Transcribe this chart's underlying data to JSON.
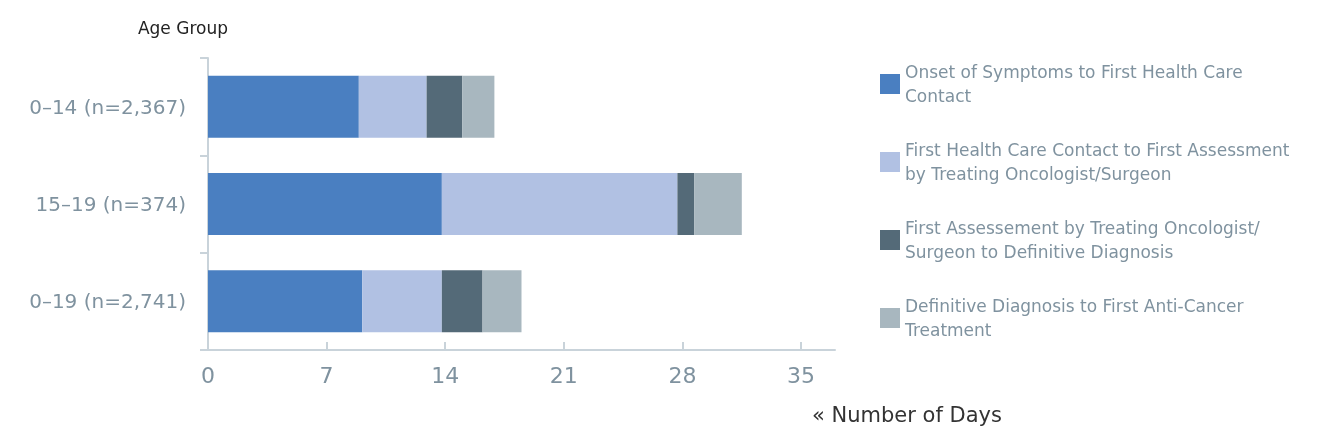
{
  "chart_data": {
    "type": "bar",
    "orientation": "horizontal",
    "stacked": true,
    "ylabel": "Age Group",
    "xlabel": "« Number of Days",
    "categories": [
      "0–14 (n=2,367)",
      "15–19 (n=374)",
      "0–19 (n=2,741)"
    ],
    "series": [
      {
        "name": "Onset of Symptoms to First Health Care Contact",
        "color": "#4a7fc1",
        "values": [
          8.9,
          13.8,
          9.1
        ]
      },
      {
        "name": "First Health Care Contact to First Assessment by Treating Oncologist/Surgeon",
        "color": "#b1c1e3",
        "values": [
          4.0,
          13.9,
          4.7
        ]
      },
      {
        "name": "First Assessement by Treating Oncologist/Surgeon to Definitive Diagnosis",
        "color": "#546a78",
        "values": [
          2.1,
          1.0,
          2.4
        ]
      },
      {
        "name": "Definitive Diagnosis to First Anti-Cancer Treatment",
        "color": "#a8b7bf",
        "values": [
          1.9,
          2.8,
          2.3
        ]
      }
    ],
    "xlim": [
      0,
      37
    ],
    "xticks": [
      0,
      7,
      14,
      21,
      28,
      35
    ],
    "grid": false,
    "legend": "right"
  }
}
